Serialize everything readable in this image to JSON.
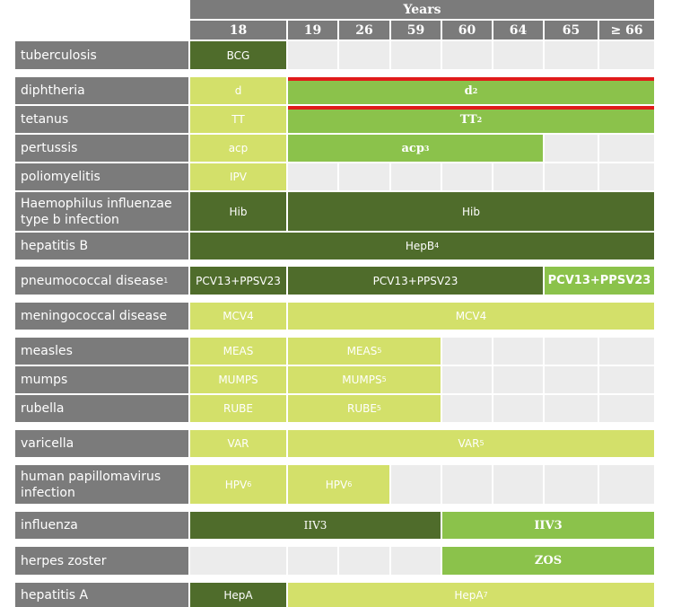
{
  "header": {
    "years_label": "Years",
    "age_columns": [
      "18",
      "19",
      "26",
      "59",
      "60",
      "64",
      "65",
      "≥ 66"
    ]
  },
  "rows": [
    {
      "label": "tuberculosis",
      "cells": [
        {
          "text": "BCG"
        }
      ]
    },
    {
      "label": "diphtheria",
      "cells": [
        {
          "text": "d"
        },
        {
          "text": "d",
          "sup": "2"
        }
      ]
    },
    {
      "label": "tetanus",
      "cells": [
        {
          "text": "TT"
        },
        {
          "text": "TT",
          "sup": "2"
        }
      ]
    },
    {
      "label": "pertussis",
      "cells": [
        {
          "text": "acp"
        },
        {
          "text": "acp",
          "sup": "3"
        }
      ]
    },
    {
      "label": "poliomyelitis",
      "cells": [
        {
          "text": "IPV"
        }
      ]
    },
    {
      "label": "Haemophilus influenzae type b infection",
      "cells": [
        {
          "text": "Hib"
        },
        {
          "text": "Hib"
        }
      ]
    },
    {
      "label": "hepatitis B",
      "cells": [
        {
          "text": "HepB",
          "sup": "4"
        }
      ]
    },
    {
      "label": "pneumococcal disease",
      "label_sup": "1",
      "cells": [
        {
          "text": "PCV13+PPSV23"
        },
        {
          "text": "PCV13+PPSV23"
        },
        {
          "text": "PCV13+PPSV23"
        }
      ]
    },
    {
      "label": "meningococcal disease",
      "cells": [
        {
          "text": "MCV4"
        },
        {
          "text": "MCV4"
        }
      ]
    },
    {
      "label": "measles",
      "cells": [
        {
          "text": "MEAS"
        },
        {
          "text": "MEAS",
          "sup": "5"
        }
      ]
    },
    {
      "label": "mumps",
      "cells": [
        {
          "text": "MUMPS"
        },
        {
          "text": "MUMPS",
          "sup": "5"
        }
      ]
    },
    {
      "label": "rubella",
      "cells": [
        {
          "text": "RUBE"
        },
        {
          "text": "RUBE",
          "sup": "5"
        }
      ]
    },
    {
      "label": "varicella",
      "cells": [
        {
          "text": "VAR"
        },
        {
          "text": "VAR",
          "sup": "5"
        }
      ]
    },
    {
      "label": "human papillomavirus infection",
      "cells": [
        {
          "text": "HPV",
          "sup": "6"
        },
        {
          "text": "HPV",
          "sup": "6"
        }
      ]
    },
    {
      "label": "influenza",
      "cells": [
        {
          "text": "IIV3"
        },
        {
          "text": "IIV3"
        }
      ]
    },
    {
      "label": "herpes zoster",
      "cells": [
        {
          "text": "ZOS"
        }
      ]
    },
    {
      "label": "hepatitis A",
      "cells": [
        {
          "text": "HepA"
        },
        {
          "text": "HepA",
          "sup": "7"
        }
      ]
    }
  ],
  "colors": {
    "label_bg": "#7b7b7b",
    "empty": "#ececec",
    "dark_green": "#4f6c2b",
    "mid_green": "#8bc24b",
    "light_green": "#d3e06a",
    "red_bar": "#e01b1b"
  }
}
